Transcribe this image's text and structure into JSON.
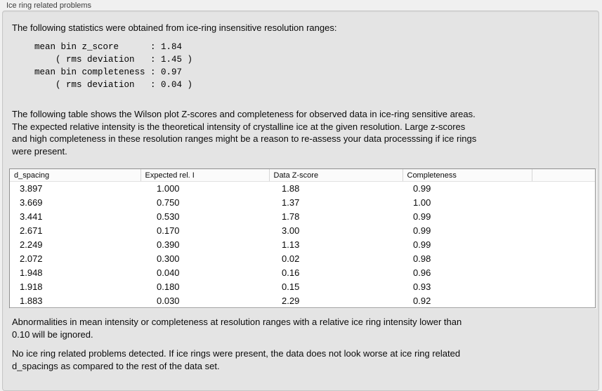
{
  "panel_title": "Ice ring related problems",
  "sections": {
    "intro": "The following statistics were obtained from ice-ring insensitive resolution ranges:",
    "stats_block": "mean bin z_score      : 1.84\n    ( rms deviation   : 1.45 )\nmean bin completeness : 0.97\n    ( rms deviation   : 0.04 )",
    "stats": {
      "mean_bin_z_score": "1.84",
      "z_score_rms_deviation": "1.45",
      "mean_bin_completeness": "0.97",
      "completeness_rms_deviation": "0.04"
    },
    "table_description": "The following table shows the Wilson plot Z-scores and completeness for observed data in ice-ring sensitive areas.\nThe expected relative intensity is the theoretical intensity of crystalline ice at the given resolution. Large z-scores\nand high completeness in these resolution ranges might be a reason to re-assess your data processsing if ice rings\nwere present.",
    "ignore_note": "Abnormalities in mean intensity or completeness at resolution ranges with a relative ice ring intensity lower than\n0.10 will be ignored.",
    "conclusion": "No ice ring related problems detected. If ice rings were present, the data does not look worse at ice ring related\nd_spacings as compared to the rest of the data set."
  },
  "table": {
    "columns": [
      "d_spacing",
      "Expected rel. I",
      "Data Z-score",
      "Completeness"
    ],
    "rows": [
      [
        "3.897",
        "1.000",
        "1.88",
        "0.99"
      ],
      [
        "3.669",
        "0.750",
        "1.37",
        "1.00"
      ],
      [
        "3.441",
        "0.530",
        "1.78",
        "0.99"
      ],
      [
        "2.671",
        "0.170",
        "3.00",
        "0.99"
      ],
      [
        "2.249",
        "0.390",
        "1.13",
        "0.99"
      ],
      [
        "2.072",
        "0.300",
        "0.02",
        "0.98"
      ],
      [
        "1.948",
        "0.040",
        "0.16",
        "0.96"
      ],
      [
        "1.918",
        "0.180",
        "0.15",
        "0.93"
      ],
      [
        "1.883",
        "0.030",
        "2.29",
        "0.92"
      ]
    ]
  },
  "colors": {
    "window_background": "#f0f0f0",
    "panel_background": "#e4e4e4",
    "table_background": "#ffffff",
    "text": "#0a0a0a"
  }
}
